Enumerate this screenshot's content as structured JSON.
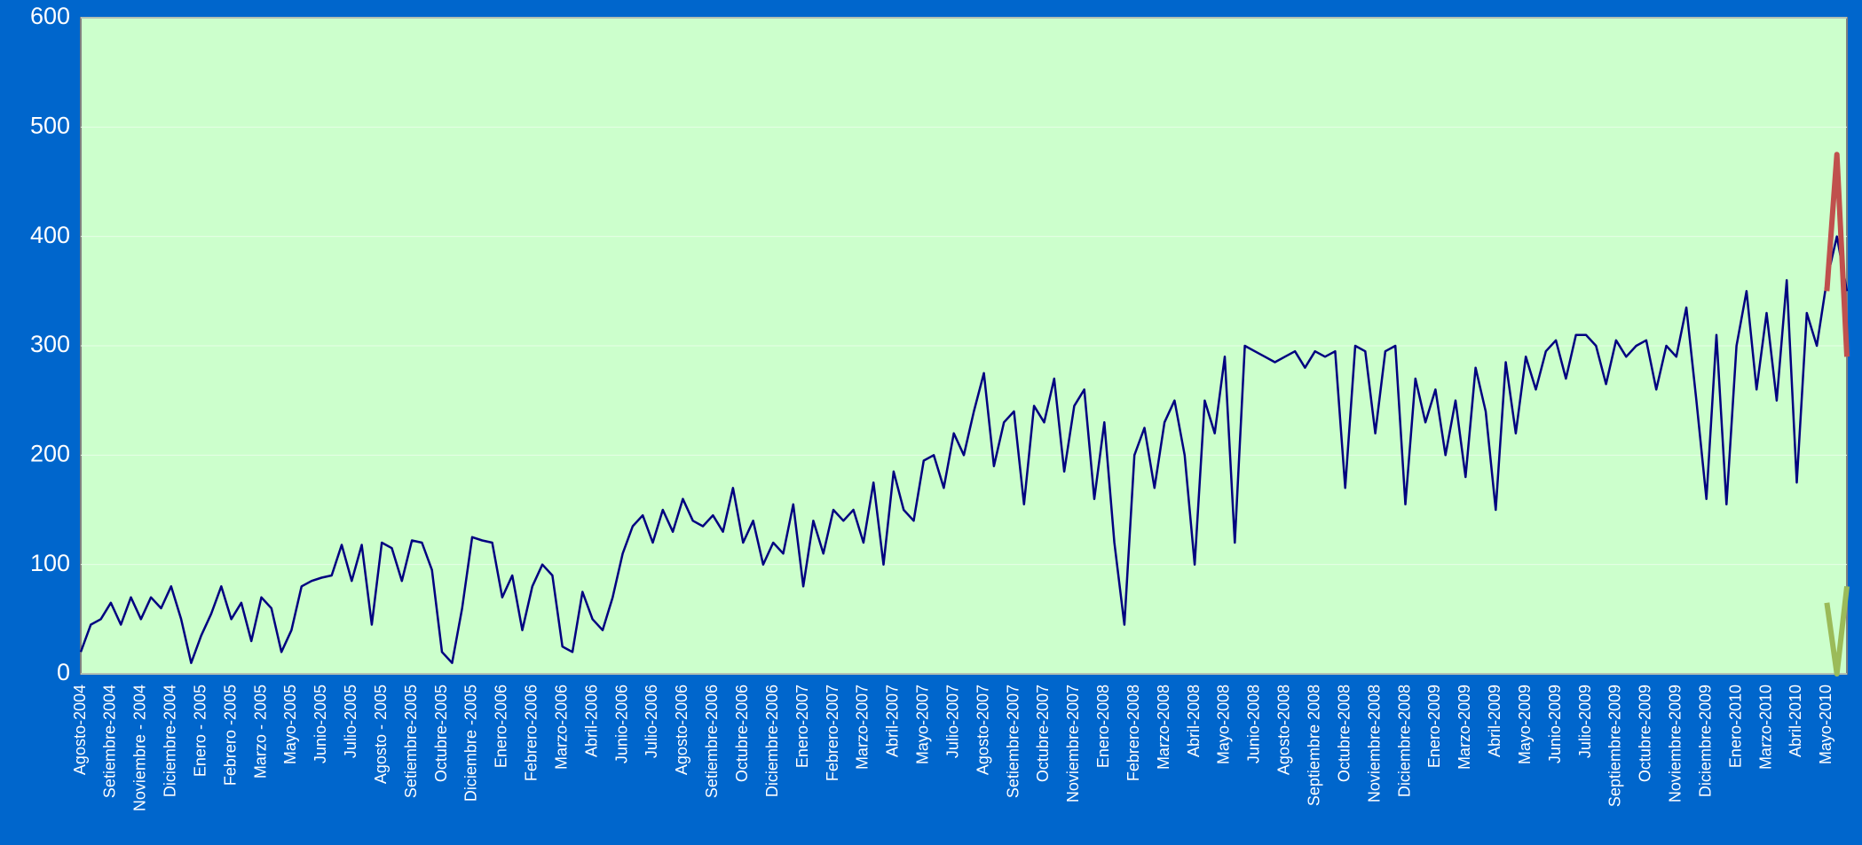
{
  "chart_data": {
    "type": "line",
    "categories": [
      "Agosto-2004",
      null,
      null,
      "Setiembre-2004",
      null,
      null,
      "Noviembre - 2004",
      null,
      null,
      "Diciembre-2004",
      null,
      null,
      "Enero - 2005",
      null,
      null,
      "Febrero -2005",
      null,
      null,
      "Marzo - 2005",
      null,
      null,
      "Mayo-2005",
      null,
      null,
      "Junio-2005",
      null,
      null,
      "Julio-2005",
      null,
      null,
      "Agosto - 2005",
      null,
      null,
      "Setiembre-2005",
      null,
      null,
      "Octubre-2005",
      null,
      null,
      "Diciembre -2005",
      null,
      null,
      "Enero-2006",
      null,
      null,
      "Febrero-2006",
      null,
      null,
      "Marzo-2006",
      null,
      null,
      "Abril-2006",
      null,
      null,
      "Junio-2006",
      null,
      null,
      "Julio-2006",
      null,
      null,
      "Agosto-2006",
      null,
      null,
      "Setiembre-2006",
      null,
      null,
      "Octubre-2006",
      null,
      null,
      "Diciembre-2006",
      null,
      null,
      "Enero-2007",
      null,
      null,
      "Febrero-2007",
      null,
      null,
      "Marzo-2007",
      null,
      null,
      "Abril-2007",
      null,
      null,
      "Mayo-2007",
      null,
      null,
      "Julio-2007",
      null,
      null,
      "Agosto-2007",
      null,
      null,
      "Setiembre-2007",
      null,
      null,
      "Octubre-2007",
      null,
      null,
      "Noviembre-2007",
      null,
      null,
      "Enero-2008",
      null,
      null,
      "Febrero-2008",
      null,
      null,
      "Marzo-2008",
      null,
      null,
      "Abril-2008",
      null,
      null,
      "Mayo-2008",
      null,
      null,
      "Junio-2008",
      null,
      null,
      "Agosto-2008",
      null,
      null,
      "Septiembre 2008",
      null,
      null,
      "Octubre-2008",
      null,
      null,
      "Noviembre-2008",
      null,
      null,
      "Diciembre-2008",
      null,
      null,
      "Enero-2009",
      null,
      null,
      "Marzo-2009",
      null,
      null,
      "Abril-2009",
      null,
      null,
      "Mayo-2009",
      null,
      null,
      "Junio-2009",
      null,
      null,
      "Julio-2009",
      null,
      null,
      "Septiembre-2009",
      null,
      null,
      "Octubre-2009",
      null,
      null,
      "Noviembre-2009",
      null,
      null,
      "Diciembre-2009",
      null,
      null,
      "Enero-2010",
      null,
      null,
      "Marzo-2010",
      null,
      null,
      "Abril-2010",
      null,
      null,
      "Mayo-2010",
      null,
      null
    ],
    "series": [
      {
        "color": "#000080",
        "width": 2.5,
        "values": [
          20,
          45,
          50,
          65,
          45,
          70,
          50,
          70,
          60,
          80,
          50,
          10,
          35,
          55,
          80,
          50,
          65,
          30,
          70,
          60,
          20,
          40,
          80,
          85,
          88,
          90,
          118,
          85,
          118,
          45,
          120,
          115,
          85,
          122,
          120,
          95,
          20,
          10,
          60,
          125,
          122,
          120,
          70,
          90,
          40,
          80,
          100,
          90,
          25,
          20,
          75,
          50,
          40,
          70,
          110,
          135,
          145,
          120,
          150,
          130,
          160,
          140,
          135,
          145,
          130,
          170,
          120,
          140,
          100,
          120,
          110,
          155,
          80,
          140,
          110,
          150,
          140,
          150,
          120,
          175,
          100,
          185,
          150,
          140,
          195,
          200,
          170,
          220,
          200,
          240,
          275,
          190,
          230,
          240,
          155,
          245,
          230,
          270,
          185,
          245,
          260,
          160,
          230,
          120,
          45,
          200,
          225,
          170,
          230,
          250,
          200,
          100,
          250,
          220,
          290,
          120,
          300,
          295,
          290,
          285,
          290,
          295,
          280,
          295,
          290,
          295,
          170,
          300,
          295,
          220,
          295,
          300,
          155,
          270,
          230,
          260,
          200,
          250,
          180,
          280,
          240,
          150,
          285,
          220,
          290,
          260,
          295,
          305,
          270,
          310,
          310,
          300,
          265,
          305,
          290,
          300,
          305,
          260,
          300,
          290,
          335,
          250,
          160,
          310,
          155,
          300,
          350,
          260,
          330,
          250,
          360,
          175,
          330,
          300,
          360,
          400,
          350
        ]
      },
      {
        "color": "#c0504d",
        "width": 6,
        "values": [
          null,
          null,
          null,
          null,
          null,
          null,
          null,
          null,
          null,
          null,
          null,
          null,
          null,
          null,
          null,
          null,
          null,
          null,
          null,
          null,
          null,
          null,
          null,
          null,
          null,
          null,
          null,
          null,
          null,
          null,
          null,
          null,
          null,
          null,
          null,
          null,
          null,
          null,
          null,
          null,
          null,
          null,
          null,
          null,
          null,
          null,
          null,
          null,
          null,
          null,
          null,
          null,
          null,
          null,
          null,
          null,
          null,
          null,
          null,
          null,
          null,
          null,
          null,
          null,
          null,
          null,
          null,
          null,
          null,
          null,
          null,
          null,
          null,
          null,
          null,
          null,
          null,
          null,
          null,
          null,
          null,
          null,
          null,
          null,
          null,
          null,
          null,
          null,
          null,
          null,
          null,
          null,
          null,
          null,
          null,
          null,
          null,
          null,
          null,
          null,
          null,
          null,
          null,
          null,
          null,
          null,
          null,
          null,
          null,
          null,
          null,
          null,
          null,
          null,
          null,
          null,
          null,
          null,
          null,
          null,
          null,
          null,
          null,
          null,
          null,
          null,
          null,
          null,
          null,
          null,
          null,
          null,
          null,
          null,
          null,
          null,
          null,
          null,
          null,
          null,
          null,
          null,
          null,
          null,
          null,
          null,
          null,
          null,
          null,
          null,
          null,
          null,
          null,
          null,
          null,
          null,
          null,
          null,
          null,
          null,
          null,
          null,
          null,
          null,
          null,
          null,
          null,
          null,
          null,
          null,
          null,
          null,
          null,
          null,
          350,
          475,
          290
        ]
      },
      {
        "color": "#9bbb59",
        "width": 6,
        "values": [
          null,
          null,
          null,
          null,
          null,
          null,
          null,
          null,
          null,
          null,
          null,
          null,
          null,
          null,
          null,
          null,
          null,
          null,
          null,
          null,
          null,
          null,
          null,
          null,
          null,
          null,
          null,
          null,
          null,
          null,
          null,
          null,
          null,
          null,
          null,
          null,
          null,
          null,
          null,
          null,
          null,
          null,
          null,
          null,
          null,
          null,
          null,
          null,
          null,
          null,
          null,
          null,
          null,
          null,
          null,
          null,
          null,
          null,
          null,
          null,
          null,
          null,
          null,
          null,
          null,
          null,
          null,
          null,
          null,
          null,
          null,
          null,
          null,
          null,
          null,
          null,
          null,
          null,
          null,
          null,
          null,
          null,
          null,
          null,
          null,
          null,
          null,
          null,
          null,
          null,
          null,
          null,
          null,
          null,
          null,
          null,
          null,
          null,
          null,
          null,
          null,
          null,
          null,
          null,
          null,
          null,
          null,
          null,
          null,
          null,
          null,
          null,
          null,
          null,
          null,
          null,
          null,
          null,
          null,
          null,
          null,
          null,
          null,
          null,
          null,
          null,
          null,
          null,
          null,
          null,
          null,
          null,
          null,
          null,
          null,
          null,
          null,
          null,
          null,
          null,
          null,
          null,
          null,
          null,
          null,
          null,
          null,
          null,
          null,
          null,
          null,
          null,
          null,
          null,
          null,
          null,
          null,
          null,
          null,
          null,
          null,
          null,
          null,
          null,
          null,
          null,
          null,
          null,
          null,
          null,
          null,
          null,
          null,
          null,
          65,
          0,
          80
        ]
      }
    ],
    "ylim": [
      0,
      600
    ],
    "yticks": [
      0,
      100,
      200,
      300,
      400,
      500,
      600
    ],
    "grid": true,
    "background": "#0066cc",
    "plot_background": "#ccffcc"
  }
}
